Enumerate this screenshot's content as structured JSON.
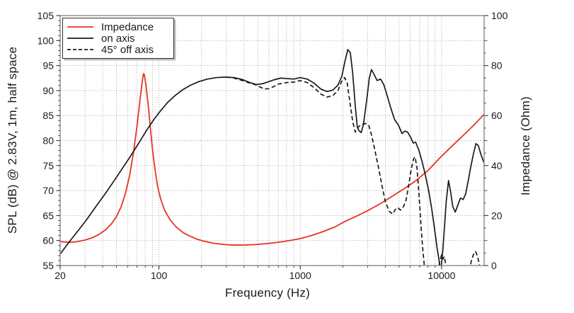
{
  "chart_data": {
    "type": "line",
    "title": "",
    "grid": "dotted",
    "grid_color": "#9b9b9b",
    "frame_color": "#909090",
    "tick_color": "#333333",
    "text_color": "#1a1a1a",
    "x_axis": {
      "label": "Frequency (Hz)",
      "scale": "log",
      "range": [
        20,
        20000
      ],
      "major_ticks": [
        20,
        100,
        1000,
        10000
      ],
      "minor_ticks": [
        30,
        40,
        50,
        60,
        70,
        80,
        90,
        200,
        300,
        400,
        500,
        600,
        700,
        800,
        900,
        2000,
        3000,
        4000,
        5000,
        6000,
        7000,
        8000,
        9000
      ]
    },
    "y_axis_left": {
      "label": "SPL (dB) @ 2.83V, 1m, half space",
      "range": [
        55,
        105
      ],
      "major_tick_step": 5,
      "minor_tick_step": 1,
      "major_ticks": [
        55,
        60,
        65,
        70,
        75,
        80,
        85,
        90,
        95,
        100,
        105
      ]
    },
    "y_axis_right": {
      "label": "Impedance (Ohm)",
      "range": [
        0,
        100
      ],
      "labeled_ticks": [
        0,
        20,
        40,
        60,
        80,
        100
      ],
      "medium_tick_step": 10,
      "minor_tick_step": 5
    },
    "legend": {
      "position": "top-left",
      "entries": [
        "Impedance",
        "on axis",
        "45° off axis"
      ]
    },
    "series": [
      {
        "name": "Impedance",
        "axis": "right",
        "unit": "Ohm",
        "color": "#e63226",
        "line_style": "solid",
        "points": [
          [
            20,
            9.6
          ],
          [
            23,
            9.3
          ],
          [
            26,
            9.5
          ],
          [
            30,
            10.2
          ],
          [
            34,
            11.2
          ],
          [
            38,
            12.6
          ],
          [
            42,
            14.3
          ],
          [
            46,
            16.6
          ],
          [
            50,
            19.5
          ],
          [
            54,
            23.5
          ],
          [
            58,
            29
          ],
          [
            62,
            36
          ],
          [
            66,
            45
          ],
          [
            70,
            56
          ],
          [
            73,
            65
          ],
          [
            75,
            70.5
          ],
          [
            77,
            75.5
          ],
          [
            78,
            76.8
          ],
          [
            79,
            76
          ],
          [
            81,
            72
          ],
          [
            84,
            64
          ],
          [
            87,
            55
          ],
          [
            90,
            46.5
          ],
          [
            94,
            38
          ],
          [
            98,
            31.5
          ],
          [
            103,
            26.5
          ],
          [
            110,
            22
          ],
          [
            120,
            18.3
          ],
          [
            132,
            15.5
          ],
          [
            148,
            13.2
          ],
          [
            165,
            11.8
          ],
          [
            185,
            10.6
          ],
          [
            210,
            9.7
          ],
          [
            240,
            9.0
          ],
          [
            280,
            8.5
          ],
          [
            330,
            8.2
          ],
          [
            400,
            8.2
          ],
          [
            480,
            8.4
          ],
          [
            560,
            8.7
          ],
          [
            650,
            9.1
          ],
          [
            760,
            9.6
          ],
          [
            880,
            10.2
          ],
          [
            1000,
            10.8
          ],
          [
            1200,
            12
          ],
          [
            1450,
            13.6
          ],
          [
            1750,
            15.4
          ],
          [
            2100,
            17.8
          ],
          [
            2550,
            20
          ],
          [
            3100,
            22.4
          ],
          [
            3750,
            25
          ],
          [
            4500,
            27.8
          ],
          [
            5450,
            30.8
          ],
          [
            6600,
            34
          ],
          [
            8000,
            38
          ],
          [
            9700,
            43
          ],
          [
            11700,
            47.5
          ],
          [
            14200,
            52
          ],
          [
            17000,
            56.3
          ],
          [
            20000,
            60.5
          ]
        ]
      },
      {
        "name": "on axis",
        "axis": "left",
        "unit": "dB",
        "color": "#1a1a1a",
        "line_style": "solid",
        "points": [
          [
            20,
            57.3
          ],
          [
            23,
            59.6
          ],
          [
            27,
            62.1
          ],
          [
            31,
            64.3
          ],
          [
            36,
            66.9
          ],
          [
            42,
            69.5
          ],
          [
            48,
            71.9
          ],
          [
            55,
            74.4
          ],
          [
            63,
            76.9
          ],
          [
            72,
            79.5
          ],
          [
            82,
            82.1
          ],
          [
            92,
            84.2
          ],
          [
            103,
            86
          ],
          [
            115,
            87.6
          ],
          [
            130,
            89
          ],
          [
            148,
            90.2
          ],
          [
            168,
            91.1
          ],
          [
            192,
            91.8
          ],
          [
            220,
            92.3
          ],
          [
            255,
            92.6
          ],
          [
            295,
            92.7
          ],
          [
            340,
            92.6
          ],
          [
            390,
            92.2
          ],
          [
            440,
            91.6
          ],
          [
            490,
            91.2
          ],
          [
            545,
            91.4
          ],
          [
            600,
            91.8
          ],
          [
            660,
            92.2
          ],
          [
            730,
            92.5
          ],
          [
            800,
            92.4
          ],
          [
            900,
            92.3
          ],
          [
            1000,
            92.6
          ],
          [
            1120,
            92.3
          ],
          [
            1250,
            91.5
          ],
          [
            1400,
            90.3
          ],
          [
            1550,
            89.8
          ],
          [
            1700,
            90.1
          ],
          [
            1850,
            91.1
          ],
          [
            1970,
            92.9
          ],
          [
            2070,
            95.8
          ],
          [
            2170,
            98.2
          ],
          [
            2260,
            97.6
          ],
          [
            2350,
            93.5
          ],
          [
            2450,
            87
          ],
          [
            2530,
            82.8
          ],
          [
            2600,
            82
          ],
          [
            2700,
            81.6
          ],
          [
            2800,
            83.2
          ],
          [
            2950,
            88
          ],
          [
            3080,
            92.5
          ],
          [
            3190,
            94.2
          ],
          [
            3320,
            93.3
          ],
          [
            3500,
            92
          ],
          [
            3700,
            92.3
          ],
          [
            3900,
            91.2
          ],
          [
            4100,
            89.2
          ],
          [
            4350,
            86.7
          ],
          [
            4650,
            84.2
          ],
          [
            4950,
            83.1
          ],
          [
            5250,
            81.4
          ],
          [
            5500,
            81.9
          ],
          [
            5750,
            81.7
          ],
          [
            6050,
            80.6
          ],
          [
            6300,
            79.5
          ],
          [
            6550,
            79.7
          ],
          [
            6900,
            78.1
          ],
          [
            7250,
            76
          ],
          [
            7650,
            73.3
          ],
          [
            8100,
            70
          ],
          [
            8500,
            66.5
          ],
          [
            8900,
            62.5
          ],
          [
            9300,
            58.5
          ],
          [
            9700,
            55.2
          ],
          [
            9900,
            54.2
          ],
          [
            10200,
            58
          ],
          [
            10500,
            63
          ],
          [
            10800,
            68
          ],
          [
            11200,
            72
          ],
          [
            11600,
            69.7
          ],
          [
            12000,
            66.8
          ],
          [
            12500,
            65.7
          ],
          [
            13000,
            67
          ],
          [
            13600,
            68.5
          ],
          [
            14200,
            68.2
          ],
          [
            14800,
            69.3
          ],
          [
            15400,
            71.8
          ],
          [
            16100,
            74.8
          ],
          [
            16800,
            77.3
          ],
          [
            17500,
            79.4
          ],
          [
            18200,
            79
          ],
          [
            19000,
            77.2
          ],
          [
            20000,
            75.5
          ]
        ]
      },
      {
        "name": "45° off axis",
        "axis": "left",
        "unit": "dB",
        "color": "#1a1a1a",
        "line_style": "dashed",
        "points": [
          [
            300,
            92.7
          ],
          [
            340,
            92.5
          ],
          [
            390,
            92
          ],
          [
            440,
            91.5
          ],
          [
            480,
            91.2
          ],
          [
            520,
            90.7
          ],
          [
            560,
            90.3
          ],
          [
            600,
            90.4
          ],
          [
            650,
            90.8
          ],
          [
            700,
            91.3
          ],
          [
            800,
            91.6
          ],
          [
            900,
            91.7
          ],
          [
            1000,
            92
          ],
          [
            1120,
            91.6
          ],
          [
            1250,
            90.6
          ],
          [
            1400,
            89.3
          ],
          [
            1550,
            88.7
          ],
          [
            1700,
            89
          ],
          [
            1850,
            90
          ],
          [
            1960,
            91.8
          ],
          [
            2060,
            92.6
          ],
          [
            2150,
            91.5
          ],
          [
            2250,
            87.5
          ],
          [
            2350,
            83.8
          ],
          [
            2450,
            81.7
          ],
          [
            2550,
            82.6
          ],
          [
            2700,
            83.2
          ],
          [
            2900,
            83.4
          ],
          [
            3050,
            83.1
          ],
          [
            3200,
            81
          ],
          [
            3400,
            77.6
          ],
          [
            3600,
            74.2
          ],
          [
            3800,
            70.8
          ],
          [
            4000,
            67.8
          ],
          [
            4250,
            65.9
          ],
          [
            4500,
            65.3
          ],
          [
            4700,
            66.2
          ],
          [
            4900,
            66.6
          ],
          [
            5100,
            66.1
          ],
          [
            5350,
            66.7
          ],
          [
            5600,
            68
          ],
          [
            5850,
            71
          ],
          [
            6100,
            74.3
          ],
          [
            6350,
            76.4
          ],
          [
            6500,
            76.7
          ],
          [
            6700,
            74.5
          ],
          [
            6950,
            68.5
          ],
          [
            7150,
            63
          ],
          [
            7350,
            58.5
          ],
          [
            7550,
            55
          ],
          [
            7750,
            53.3
          ],
          [
            9400,
            53.3
          ],
          [
            9700,
            55.8
          ],
          [
            10000,
            57.1
          ],
          [
            10250,
            56.3
          ],
          [
            10450,
            56.8
          ],
          [
            10700,
            55.2
          ],
          [
            10900,
            53.3
          ],
          [
            15700,
            53.3
          ],
          [
            16200,
            55.8
          ],
          [
            16800,
            57.2
          ],
          [
            17400,
            57.8
          ],
          [
            18000,
            56.8
          ],
          [
            18500,
            55.2
          ],
          [
            18800,
            53.3
          ],
          [
            20000,
            53.3
          ]
        ]
      }
    ]
  }
}
